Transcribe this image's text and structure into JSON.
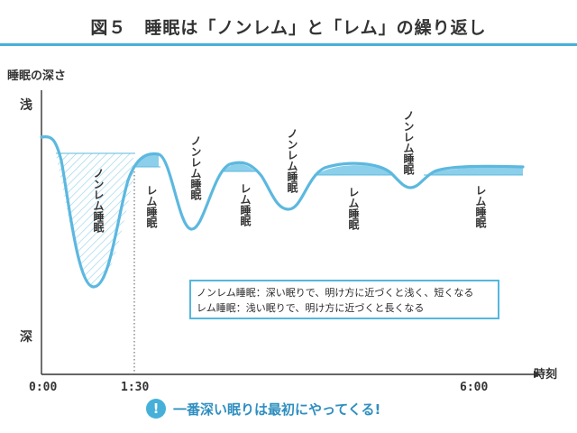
{
  "title": "図５　睡眠は「ノンレム」と「レム」の繰り返し",
  "colors": {
    "accent": "#46b0d9",
    "curve": "#5cb8df",
    "fill": "#8ccfea",
    "text": "#333333"
  },
  "chart_data": {
    "type": "line",
    "title": "図５　睡眠は「ノンレム」と「レム」の繰り返し",
    "ylabel": "睡眠の深さ",
    "xlabel": "時刻",
    "y_ticks": [
      "浅",
      "深"
    ],
    "x_ticks": [
      "0:00",
      "1:30",
      "6:00"
    ],
    "grid": false,
    "phase_labels": [
      "ノンレム睡眠",
      "レム睡眠",
      "ノンレム睡眠",
      "レム睡眠",
      "ノンレム睡眠",
      "レム睡眠",
      "ノンレム睡眠",
      "レム睡眠"
    ],
    "legend_lines": [
      "ノンレム睡眠：深い眠りで、明け方に近づくと浅く、短くなる",
      "レム睡眠：浅い眠りで、明け方に近づくと長くなる"
    ],
    "annotations": []
  },
  "footer": {
    "icon": "exclamation-icon",
    "text": "一番深い眠りは最初にやってくる!"
  }
}
